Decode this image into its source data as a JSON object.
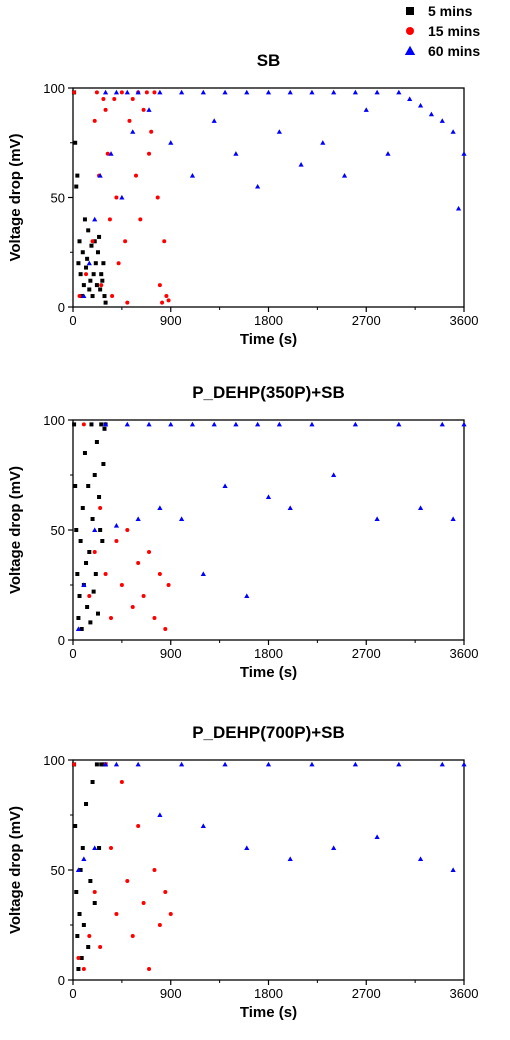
{
  "legend": {
    "placement": "top-right",
    "entries": [
      {
        "label": "5 mins",
        "color": "#000000",
        "marker": "square"
      },
      {
        "label": "15 mins",
        "color": "#ff0000",
        "marker": "circle"
      },
      {
        "label": "60 mins",
        "color": "#0000ff",
        "marker": "triangle"
      }
    ]
  },
  "chart_data": [
    {
      "type": "scatter",
      "title": "SB",
      "xlabel": "Time (s)",
      "ylabel": "Voltage drop (mV)",
      "xlim": [
        0,
        3600
      ],
      "ylim": [
        0,
        100
      ],
      "xticks": [
        "0",
        "900",
        "1800",
        "2700",
        "3600"
      ],
      "yticks": [
        "0",
        "50",
        "100"
      ],
      "grid": false,
      "series": [
        {
          "name": "5 mins",
          "color": "#000000",
          "marker": "square",
          "x": [
            10,
            20,
            30,
            40,
            50,
            60,
            70,
            80,
            90,
            100,
            110,
            120,
            130,
            140,
            150,
            160,
            170,
            180,
            190,
            200,
            210,
            220,
            230,
            240,
            250,
            260,
            270,
            280,
            290,
            300
          ],
          "y": [
            98,
            75,
            55,
            60,
            20,
            30,
            15,
            5,
            25,
            10,
            40,
            18,
            22,
            35,
            8,
            12,
            28,
            5,
            15,
            30,
            20,
            10,
            25,
            32,
            8,
            15,
            12,
            20,
            5,
            2
          ]
        },
        {
          "name": "15 mins",
          "color": "#ff0000",
          "marker": "circle",
          "x": [
            10,
            60,
            120,
            180,
            200,
            220,
            240,
            260,
            280,
            300,
            320,
            340,
            360,
            380,
            400,
            420,
            450,
            480,
            500,
            520,
            550,
            580,
            600,
            620,
            650,
            680,
            700,
            720,
            750,
            780,
            800,
            820,
            840,
            860,
            880
          ],
          "y": [
            98,
            5,
            15,
            30,
            85,
            98,
            60,
            10,
            95,
            90,
            70,
            40,
            5,
            95,
            50,
            20,
            98,
            30,
            2,
            85,
            95,
            60,
            98,
            40,
            90,
            98,
            70,
            80,
            98,
            50,
            10,
            2,
            30,
            5,
            3
          ]
        },
        {
          "name": "60 mins",
          "color": "#0000ff",
          "marker": "triangle",
          "x": [
            100,
            150,
            200,
            250,
            300,
            350,
            400,
            450,
            500,
            550,
            600,
            700,
            800,
            900,
            1000,
            1100,
            1200,
            1300,
            1400,
            1500,
            1600,
            1700,
            1800,
            1900,
            2000,
            2100,
            2200,
            2300,
            2400,
            2500,
            2600,
            2700,
            2800,
            2900,
            3000,
            3100,
            3200,
            3300,
            3400,
            3500,
            3550,
            3600
          ],
          "y": [
            5,
            20,
            40,
            60,
            98,
            70,
            98,
            50,
            98,
            80,
            98,
            90,
            98,
            75,
            98,
            60,
            98,
            85,
            98,
            70,
            98,
            55,
            98,
            80,
            98,
            65,
            98,
            75,
            98,
            60,
            98,
            90,
            98,
            70,
            98,
            95,
            92,
            88,
            85,
            80,
            45,
            70
          ]
        }
      ]
    },
    {
      "type": "scatter",
      "title": "P_DEHP(350P)+SB",
      "xlabel": "Time (s)",
      "ylabel": "Voltage drop (mV)",
      "xlim": [
        0,
        3600
      ],
      "ylim": [
        0,
        100
      ],
      "xticks": [
        "0",
        "900",
        "1800",
        "2700",
        "3600"
      ],
      "yticks": [
        "0",
        "50",
        "100"
      ],
      "grid": false,
      "series": [
        {
          "name": "5 mins",
          "color": "#000000",
          "marker": "square",
          "x": [
            10,
            20,
            30,
            40,
            50,
            60,
            70,
            80,
            90,
            100,
            110,
            120,
            130,
            140,
            150,
            160,
            170,
            180,
            190,
            200,
            210,
            220,
            230,
            240,
            250,
            260,
            270,
            280,
            290,
            300
          ],
          "y": [
            98,
            70,
            50,
            30,
            10,
            20,
            45,
            5,
            60,
            25,
            85,
            35,
            15,
            70,
            40,
            8,
            98,
            55,
            22,
            75,
            30,
            90,
            12,
            65,
            50,
            98,
            45,
            80,
            96,
            98
          ]
        },
        {
          "name": "15 mins",
          "color": "#ff0000",
          "marker": "circle",
          "x": [
            100,
            150,
            200,
            250,
            300,
            350,
            400,
            450,
            500,
            550,
            600,
            650,
            700,
            750,
            800,
            850,
            880
          ],
          "y": [
            98,
            20,
            40,
            60,
            30,
            10,
            45,
            25,
            50,
            15,
            35,
            20,
            40,
            10,
            30,
            5,
            25
          ]
        },
        {
          "name": "60 mins",
          "color": "#0000ff",
          "marker": "triangle",
          "x": [
            50,
            100,
            200,
            300,
            400,
            500,
            600,
            700,
            800,
            900,
            1000,
            1100,
            1200,
            1300,
            1400,
            1500,
            1600,
            1700,
            1800,
            1900,
            2000,
            2200,
            2400,
            2600,
            2800,
            3000,
            3200,
            3400,
            3500,
            3600
          ],
          "y": [
            5,
            25,
            50,
            98,
            52,
            98,
            55,
            98,
            60,
            98,
            55,
            98,
            30,
            98,
            70,
            98,
            20,
            98,
            65,
            98,
            60,
            98,
            75,
            98,
            55,
            98,
            60,
            98,
            55,
            98
          ]
        }
      ]
    },
    {
      "type": "scatter",
      "title": "P_DEHP(700P)+SB",
      "xlabel": "Time (s)",
      "ylabel": "Voltage drop (mV)",
      "xlim": [
        0,
        3600
      ],
      "ylim": [
        0,
        100
      ],
      "xticks": [
        "0",
        "900",
        "1800",
        "2700",
        "3600"
      ],
      "yticks": [
        "0",
        "50",
        "100"
      ],
      "grid": false,
      "series": [
        {
          "name": "5 mins",
          "color": "#000000",
          "marker": "square",
          "x": [
            10,
            20,
            30,
            40,
            50,
            60,
            70,
            80,
            90,
            100,
            120,
            140,
            160,
            180,
            200,
            220,
            240,
            260,
            280,
            300
          ],
          "y": [
            98,
            70,
            40,
            20,
            5,
            30,
            50,
            10,
            60,
            25,
            80,
            15,
            45,
            90,
            35,
            98,
            60,
            98,
            98,
            98
          ]
        },
        {
          "name": "15 mins",
          "color": "#ff0000",
          "marker": "circle",
          "x": [
            10,
            50,
            100,
            150,
            200,
            250,
            300,
            350,
            400,
            450,
            500,
            550,
            600,
            650,
            700,
            750,
            800,
            850,
            900
          ],
          "y": [
            98,
            10,
            5,
            20,
            40,
            15,
            98,
            60,
            30,
            90,
            45,
            20,
            70,
            35,
            5,
            50,
            25,
            40,
            30
          ]
        },
        {
          "name": "60 mins",
          "color": "#0000ff",
          "marker": "triangle",
          "x": [
            50,
            100,
            200,
            300,
            400,
            600,
            800,
            1000,
            1200,
            1400,
            1600,
            1800,
            2000,
            2200,
            2400,
            2600,
            2800,
            3000,
            3200,
            3400,
            3500,
            3600
          ],
          "y": [
            50,
            55,
            60,
            98,
            98,
            98,
            75,
            98,
            70,
            98,
            60,
            98,
            55,
            98,
            60,
            98,
            65,
            98,
            55,
            98,
            50,
            98
          ]
        }
      ]
    }
  ]
}
